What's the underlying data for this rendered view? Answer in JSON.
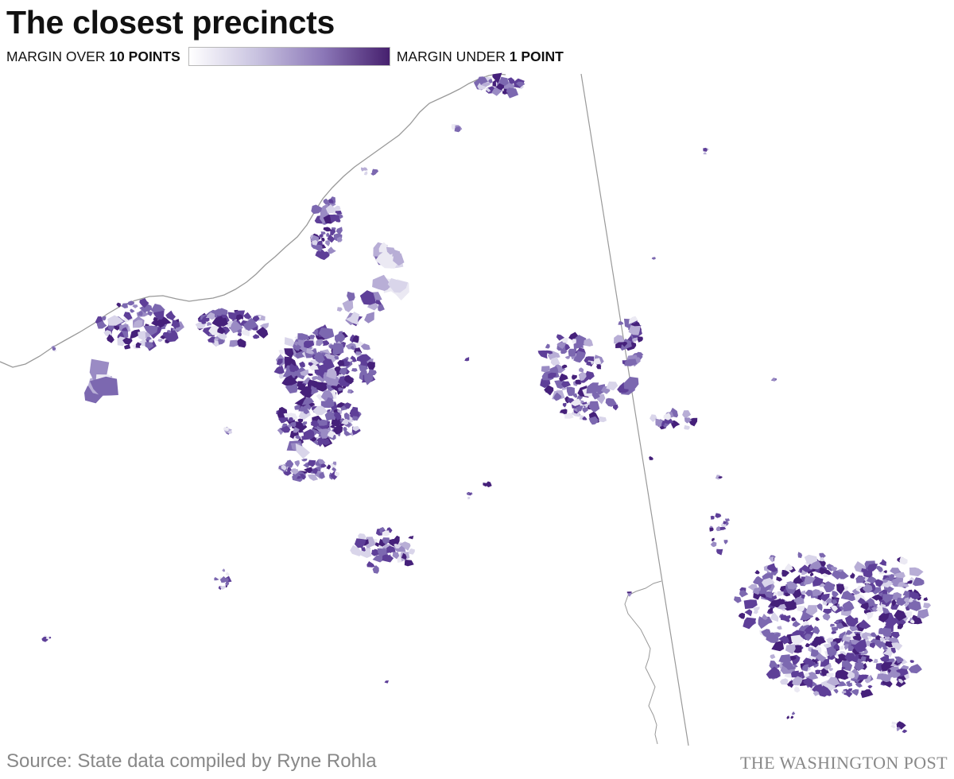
{
  "title": "The closest precincts",
  "legend": {
    "left_prefix": "MARGIN OVER ",
    "left_bold": "10 POINTS",
    "right_prefix": "MARGIN UNDER ",
    "right_bold": "1 POINT",
    "ramp_colors": [
      "#ffffff",
      "#c9c3e0",
      "#8c78b8",
      "#46206e"
    ]
  },
  "palette": {
    "shades": [
      "#ebe9f3",
      "#d9d5ea",
      "#b8aed6",
      "#9a8bc4",
      "#7c68b0",
      "#5e3f98",
      "#45207a"
    ],
    "coast": "#999999",
    "border": "#999999"
  },
  "source": "Source: State data compiled by Ryne Rohla",
  "credit": "THE WASHINGTON POST"
}
